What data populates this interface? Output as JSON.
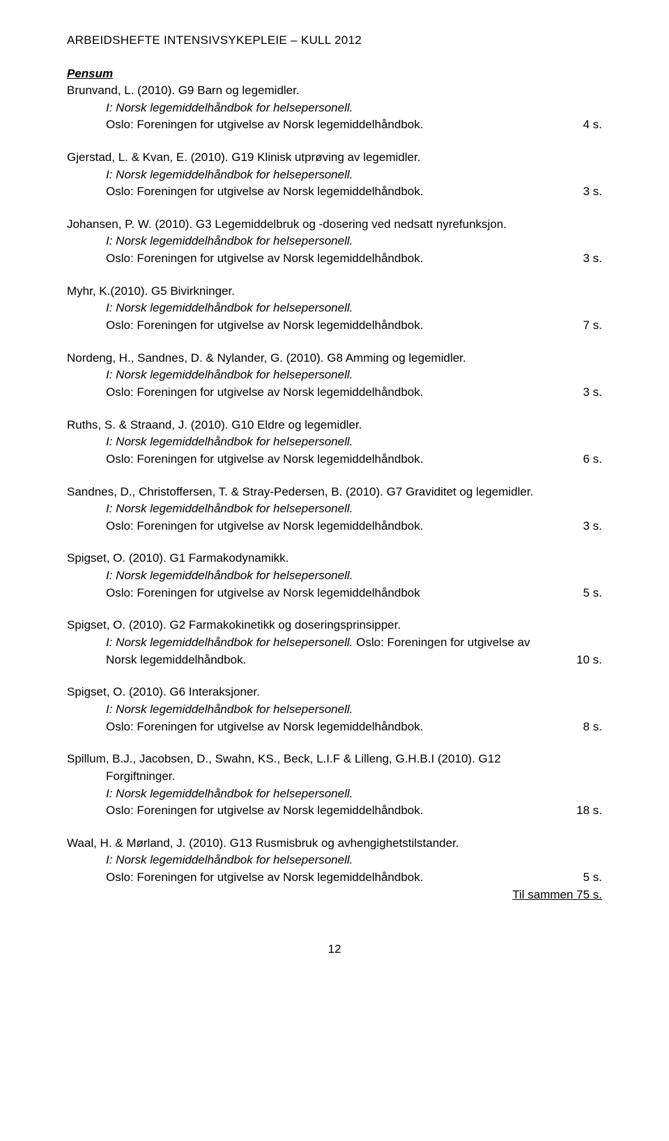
{
  "header": "ARBEIDSHEFTE INTENSIVSYKEPLEIE – KULL 2012",
  "section_title": "Pensum",
  "handbook_line": "I: Norsk legemiddelhåndbok for helsepersonell.",
  "publisher_line": "Oslo: Foreningen for utgivelse av Norsk legemiddelhåndbok.",
  "publisher_line_nodot": "Oslo: Foreningen for utgivelse av Norsk legemiddelhåndbok",
  "publisher_only": "Oslo: Foreningen for utgivelse av",
  "norsk_line": "Norsk legemiddelhåndbok.",
  "entries": [
    {
      "title": "Brunvand, L. (2010). G9 Barn og legemidler.",
      "pages": "4 s."
    },
    {
      "title": "Gjerstad, L. & Kvan, E. (2010). G19 Klinisk utprøving av legemidler.",
      "pages": "3 s."
    },
    {
      "title": "Johansen, P. W. (2010). G3 Legemiddelbruk og -dosering ved nedsatt nyrefunksjon.",
      "pages": "3 s."
    },
    {
      "title": "Myhr, K.(2010). G5 Bivirkninger.",
      "pages": "7 s."
    },
    {
      "title": "Nordeng, H., Sandnes, D. & Nylander, G. (2010). G8 Amming og legemidler.",
      "pages": "3 s."
    },
    {
      "title": "Ruths, S. & Straand, J. (2010). G10 Eldre og legemidler.",
      "pages": "6 s."
    },
    {
      "title": "Sandnes, D., Christoffersen, T. & Stray-Pedersen, B. (2010). G7 Graviditet og legemidler.",
      "pages": "3 s."
    },
    {
      "title": "Spigset, O. (2010). G1 Farmakodynamikk.",
      "pages": "5 s."
    },
    {
      "title": "Spigset, O. (2010). G2 Farmakokinetikk og doseringsprinsipper.",
      "pages": "10 s."
    },
    {
      "title": "Spigset, O. (2010). G6 Interaksjoner.",
      "pages": "8 s."
    },
    {
      "title_a": "Spillum, B.J., Jacobsen, D., Swahn, KS., Beck, L.I.F & Lilleng, G.H.B.I (2010). G12",
      "title_b": "Forgiftninger.",
      "pages": "18 s."
    },
    {
      "title": "Waal, H. & Mørland, J. (2010). G13 Rusmisbruk og avhengighetstilstander.",
      "pages": "5 s."
    }
  ],
  "total_line": "Til sammen 75 s.",
  "page_number": "12"
}
